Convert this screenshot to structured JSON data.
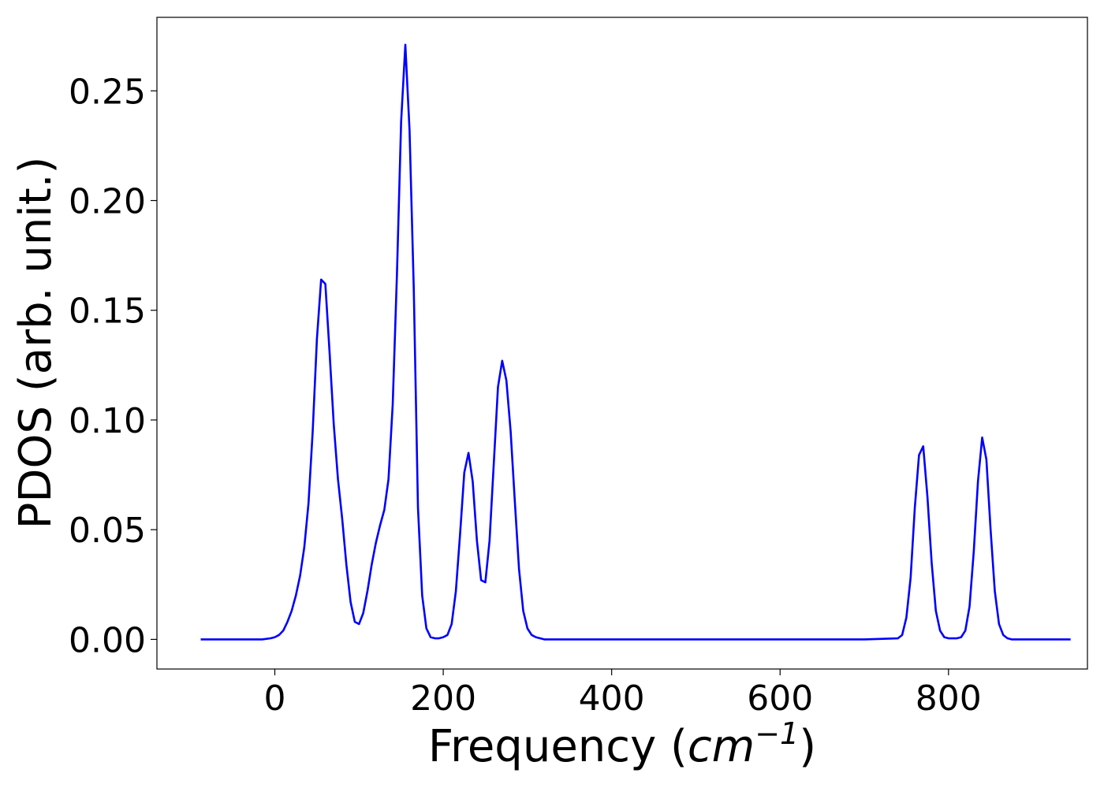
{
  "chart_data": {
    "type": "line",
    "title": "",
    "xlabel": "Frequency",
    "xlabel_unit_base": "cm",
    "xlabel_unit_exp": "−1",
    "ylabel": "PDOS (arb. unit.)",
    "xlim": [
      -140,
      965
    ],
    "ylim": [
      -0.0135,
      0.2835
    ],
    "xticks": [
      0,
      200,
      400,
      600,
      800
    ],
    "xtick_labels": [
      "0",
      "200",
      "400",
      "600",
      "800"
    ],
    "yticks": [
      0.0,
      0.05,
      0.1,
      0.15,
      0.2,
      0.25
    ],
    "ytick_labels": [
      "0.00",
      "0.05",
      "0.10",
      "0.15",
      "0.20",
      "0.25"
    ],
    "grid": false,
    "legend": "none",
    "series": [
      {
        "color": "#0000ff",
        "x": [
          -88,
          -70,
          -50,
          -30,
          -15,
          -5,
          0,
          5,
          10,
          15,
          20,
          25,
          30,
          35,
          40,
          45,
          50,
          55,
          60,
          65,
          70,
          75,
          80,
          85,
          90,
          95,
          100,
          105,
          110,
          115,
          120,
          125,
          130,
          135,
          140,
          145,
          150,
          155,
          160,
          165,
          170,
          175,
          180,
          185,
          190,
          195,
          200,
          205,
          210,
          215,
          220,
          225,
          230,
          235,
          240,
          245,
          250,
          255,
          260,
          265,
          270,
          275,
          280,
          285,
          290,
          295,
          300,
          305,
          310,
          315,
          320,
          325,
          330,
          340,
          400,
          500,
          600,
          700,
          740,
          745,
          750,
          755,
          760,
          765,
          770,
          775,
          780,
          785,
          790,
          795,
          800,
          805,
          810,
          815,
          820,
          825,
          830,
          835,
          840,
          845,
          850,
          855,
          860,
          865,
          870,
          875,
          880,
          885,
          890,
          900,
          945
        ],
        "y": [
          0.0,
          0.0,
          0.0,
          0.0,
          0.0,
          0.0005,
          0.001,
          0.002,
          0.004,
          0.008,
          0.013,
          0.02,
          0.029,
          0.042,
          0.062,
          0.095,
          0.137,
          0.164,
          0.162,
          0.131,
          0.098,
          0.073,
          0.055,
          0.034,
          0.017,
          0.008,
          0.007,
          0.012,
          0.022,
          0.034,
          0.044,
          0.052,
          0.059,
          0.073,
          0.107,
          0.166,
          0.236,
          0.271,
          0.232,
          0.16,
          0.06,
          0.02,
          0.005,
          0.001,
          0.0005,
          0.0005,
          0.001,
          0.002,
          0.007,
          0.022,
          0.048,
          0.076,
          0.085,
          0.072,
          0.045,
          0.027,
          0.026,
          0.045,
          0.08,
          0.115,
          0.127,
          0.118,
          0.095,
          0.063,
          0.032,
          0.013,
          0.005,
          0.002,
          0.001,
          0.0005,
          0.0,
          0.0,
          0.0,
          0.0,
          0.0,
          0.0,
          0.0,
          0.0,
          0.0005,
          0.002,
          0.01,
          0.028,
          0.06,
          0.084,
          0.088,
          0.065,
          0.035,
          0.013,
          0.004,
          0.001,
          0.0005,
          0.0005,
          0.0005,
          0.001,
          0.004,
          0.015,
          0.04,
          0.072,
          0.092,
          0.082,
          0.05,
          0.022,
          0.007,
          0.002,
          0.0005,
          0.0,
          0.0,
          0.0,
          0.0,
          0.0,
          0.0
        ]
      }
    ]
  }
}
